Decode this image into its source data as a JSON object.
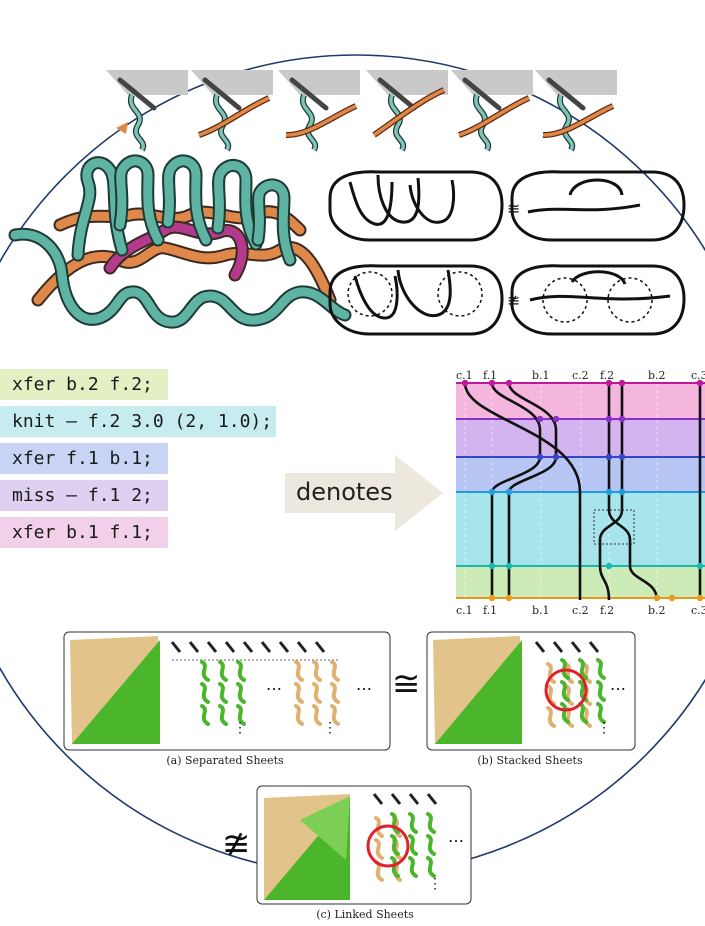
{
  "code_lines": [
    {
      "text": "xfer b.2 f.2;",
      "color": "#e2f0c4"
    },
    {
      "text": "knit – f.2 3.0 (2, 1.0);",
      "color": "#c7ecef"
    },
    {
      "text": "xfer f.1 b.1;",
      "color": "#c9d4f4"
    },
    {
      "text": "miss – f.1 2;",
      "color": "#ddd0f0"
    },
    {
      "text": "xfer b.1 f.1;",
      "color": "#f2d0ea"
    }
  ],
  "denotes_label": "denotes",
  "machine_diagram": {
    "top_labels": [
      "c.1",
      "f.1",
      "b.1",
      "c.2",
      "f.2",
      "b.2",
      "c.3"
    ],
    "bottom_labels": [
      "c.1",
      "f.1",
      "b.1",
      "c.2",
      "f.2",
      "b.2",
      "c.3"
    ],
    "band_colors": [
      "#f4b6dc",
      "#d3b4ef",
      "#b6c5f3",
      "#a7e4ec",
      "#a7e4ec",
      "#cdebb6"
    ],
    "line_colors": [
      "#c0179d",
      "#8b2fc9",
      "#3545c8",
      "#1e9ee0",
      "#19b7b2",
      "#e89a1e"
    ]
  },
  "equivalence_symbols": {
    "equal": "≅",
    "not_equal": "≇"
  },
  "captions": {
    "a": "(a) Separated Sheets",
    "b": "(b) Stacked Sheets",
    "c": "(c) Linked Sheets"
  },
  "colors": {
    "teal_yarn": "#5fb3a3",
    "orange_yarn": "#e0884a",
    "magenta_yarn": "#b33a8c",
    "green_fabric": "#4bb52c",
    "tan_fabric": "#e2c48a",
    "circle_stroke": "#1e3a6e",
    "mark_red": "#e0202a"
  }
}
